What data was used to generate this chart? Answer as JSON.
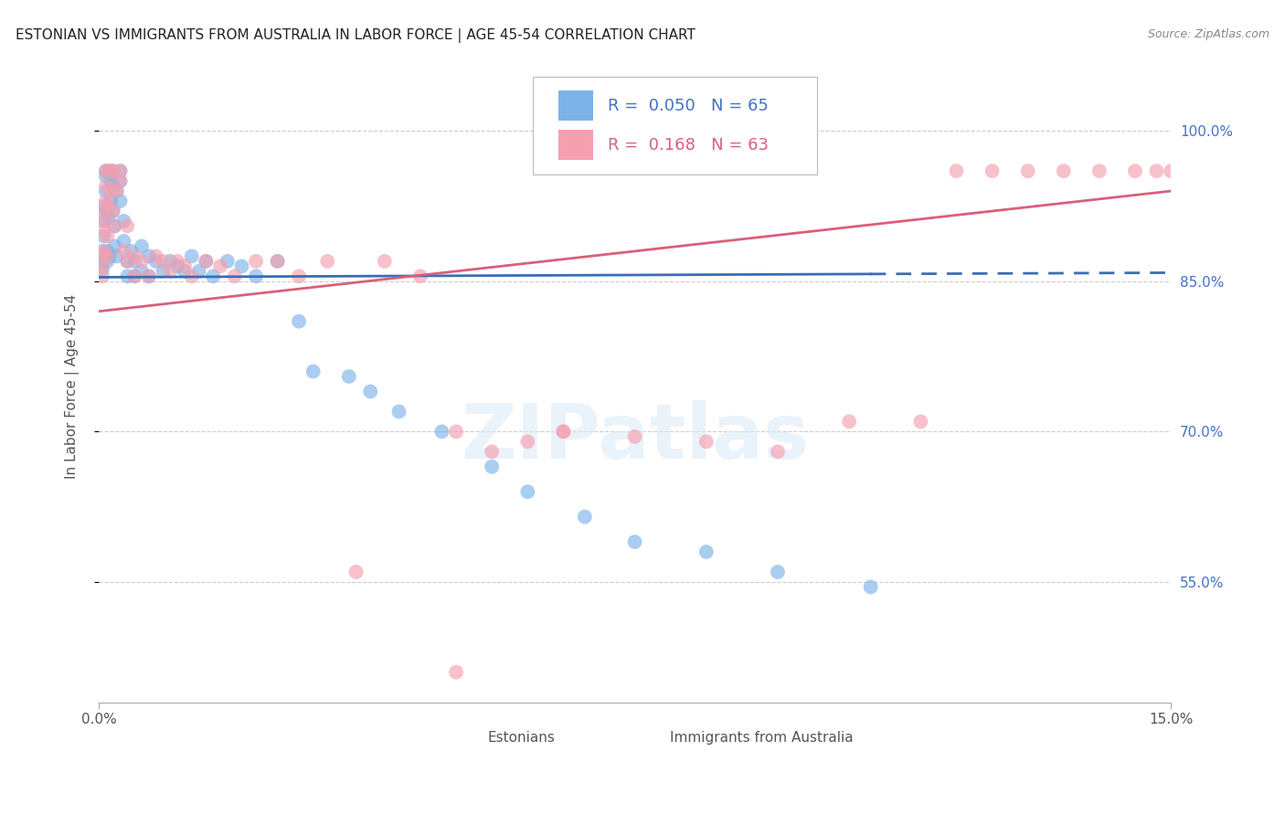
{
  "title": "ESTONIAN VS IMMIGRANTS FROM AUSTRALIA IN LABOR FORCE | AGE 45-54 CORRELATION CHART",
  "source": "Source: ZipAtlas.com",
  "ylabel": "In Labor Force | Age 45-54",
  "ytick_labels": [
    "55.0%",
    "70.0%",
    "85.0%",
    "100.0%"
  ],
  "ytick_values": [
    0.55,
    0.7,
    0.85,
    1.0
  ],
  "xlim": [
    0.0,
    0.15
  ],
  "ylim": [
    0.43,
    1.06
  ],
  "R_estonian": 0.05,
  "N_estonian": 65,
  "R_immigrant": 0.168,
  "N_immigrant": 63,
  "color_estonian": "#7EB3E8",
  "color_immigrant": "#F4A0B0",
  "line_color_estonian": "#3A6DB5",
  "line_color_immigrant": "#D9607A",
  "estonian_x": [
    0.0005,
    0.0005,
    0.0005,
    0.0007,
    0.0007,
    0.0008,
    0.0008,
    0.001,
    0.001,
    0.001,
    0.001,
    0.0012,
    0.0012,
    0.0013,
    0.0015,
    0.0015,
    0.0017,
    0.0017,
    0.002,
    0.002,
    0.002,
    0.0022,
    0.0022,
    0.0025,
    0.0025,
    0.003,
    0.003,
    0.003,
    0.0035,
    0.0035,
    0.004,
    0.004,
    0.0045,
    0.005,
    0.005,
    0.006,
    0.006,
    0.007,
    0.007,
    0.008,
    0.009,
    0.01,
    0.011,
    0.012,
    0.013,
    0.014,
    0.015,
    0.016,
    0.018,
    0.02,
    0.022,
    0.025,
    0.028,
    0.03,
    0.035,
    0.038,
    0.042,
    0.048,
    0.055,
    0.06,
    0.068,
    0.075,
    0.085,
    0.095,
    0.108
  ],
  "estonian_y": [
    0.87,
    0.88,
    0.862,
    0.895,
    0.875,
    0.91,
    0.925,
    0.96,
    0.955,
    0.94,
    0.92,
    0.88,
    0.87,
    0.915,
    0.96,
    0.875,
    0.95,
    0.93,
    0.96,
    0.945,
    0.92,
    0.905,
    0.885,
    0.94,
    0.875,
    0.96,
    0.95,
    0.93,
    0.91,
    0.89,
    0.87,
    0.855,
    0.88,
    0.87,
    0.855,
    0.885,
    0.86,
    0.875,
    0.855,
    0.87,
    0.86,
    0.87,
    0.865,
    0.86,
    0.875,
    0.86,
    0.87,
    0.855,
    0.87,
    0.865,
    0.855,
    0.87,
    0.81,
    0.76,
    0.755,
    0.74,
    0.72,
    0.7,
    0.665,
    0.64,
    0.615,
    0.59,
    0.58,
    0.56,
    0.545
  ],
  "immigrant_x": [
    0.0005,
    0.0005,
    0.0005,
    0.0007,
    0.0007,
    0.0008,
    0.0008,
    0.001,
    0.001,
    0.001,
    0.0012,
    0.0012,
    0.0013,
    0.0015,
    0.0017,
    0.002,
    0.002,
    0.0022,
    0.0025,
    0.003,
    0.003,
    0.0035,
    0.004,
    0.004,
    0.005,
    0.005,
    0.006,
    0.007,
    0.008,
    0.009,
    0.01,
    0.011,
    0.012,
    0.013,
    0.015,
    0.017,
    0.019,
    0.022,
    0.025,
    0.028,
    0.032,
    0.036,
    0.04,
    0.045,
    0.05,
    0.055,
    0.06,
    0.065,
    0.05,
    0.065,
    0.075,
    0.085,
    0.095,
    0.105,
    0.115,
    0.125,
    0.135,
    0.14,
    0.145,
    0.148,
    0.12,
    0.13,
    0.15
  ],
  "immigrant_y": [
    0.875,
    0.865,
    0.855,
    0.9,
    0.88,
    0.92,
    0.91,
    0.96,
    0.945,
    0.93,
    0.895,
    0.875,
    0.925,
    0.96,
    0.94,
    0.96,
    0.92,
    0.905,
    0.94,
    0.96,
    0.95,
    0.88,
    0.905,
    0.87,
    0.875,
    0.855,
    0.87,
    0.855,
    0.875,
    0.87,
    0.86,
    0.87,
    0.865,
    0.855,
    0.87,
    0.865,
    0.855,
    0.87,
    0.87,
    0.855,
    0.87,
    0.56,
    0.87,
    0.855,
    0.7,
    0.68,
    0.69,
    0.7,
    0.46,
    0.7,
    0.695,
    0.69,
    0.68,
    0.71,
    0.71,
    0.96,
    0.96,
    0.96,
    0.96,
    0.96,
    0.96,
    0.96,
    0.96
  ]
}
